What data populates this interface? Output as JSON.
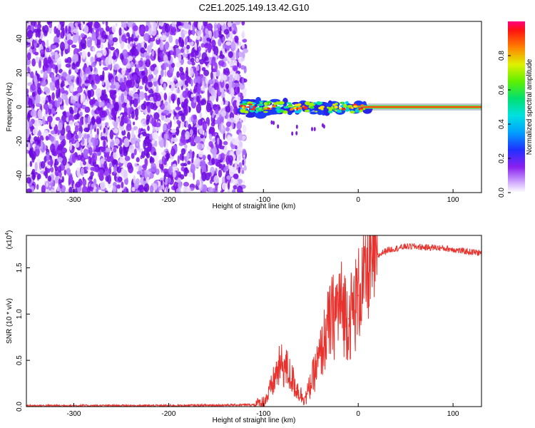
{
  "chart_data": [
    {
      "type": "heatmap",
      "title": "C2E1.2025.149.13.42.G10",
      "xlabel": "Height of straight line (km)",
      "ylabel": "Frequency (Hz)",
      "xlim": [
        -350,
        130
      ],
      "ylim": [
        -50,
        50
      ],
      "x_ticks": [
        -300,
        -200,
        -100,
        0,
        100
      ],
      "y_ticks": [
        -40,
        -20,
        0,
        20,
        40
      ],
      "colorbar": {
        "label": "Normalized spectral amplitude",
        "range": [
          0.0,
          1.0
        ],
        "ticks": [
          0.0,
          0.2,
          0.4,
          0.6,
          0.8
        ]
      },
      "regions": [
        {
          "name": "noise",
          "x_range": [
            -350,
            -125
          ],
          "freq_range": [
            -50,
            50
          ],
          "amplitude": "0.05-0.25 (purple speckle)"
        },
        {
          "name": "multipath",
          "x_range": [
            -125,
            10
          ],
          "freq_range": [
            -15,
            10
          ],
          "amplitude": "0.3-0.9 (green/yellow/red blobs)"
        },
        {
          "name": "direct_signal",
          "x_range": [
            10,
            130
          ],
          "freq_range": [
            -1,
            1
          ],
          "amplitude": "~1.0 (red line)"
        }
      ]
    },
    {
      "type": "line",
      "title": "",
      "xlabel": "Height of straight line (km)",
      "ylabel": "SNR (10 * v/v)",
      "y_multiplier": "(x10^4)",
      "y_multiplier_base": "(x10",
      "y_multiplier_exp": "4",
      "y_multiplier_close": ")",
      "xlim": [
        -350,
        130
      ],
      "ylim": [
        0,
        1.85
      ],
      "x_ticks": [
        -300,
        -200,
        -100,
        0,
        100
      ],
      "y_ticks": [
        0.0,
        0.5,
        1.0,
        1.5
      ],
      "y_tick_labels": [
        "0.0",
        "0.5",
        "1.0",
        "1.5"
      ],
      "series": [
        {
          "name": "SNR",
          "color": "#e8322d",
          "x": [
            -350,
            -300,
            -250,
            -200,
            -150,
            -110,
            -100,
            -95,
            -90,
            -85,
            -80,
            -75,
            -70,
            -65,
            -60,
            -55,
            -50,
            -45,
            -40,
            -35,
            -30,
            -25,
            -20,
            -15,
            -10,
            -5,
            0,
            5,
            10,
            15,
            20,
            25,
            30,
            35,
            40,
            45,
            50,
            60,
            70,
            80,
            90,
            100,
            110,
            120,
            130
          ],
          "values": [
            0.01,
            0.01,
            0.01,
            0.01,
            0.015,
            0.02,
            0.05,
            0.12,
            0.25,
            0.4,
            0.45,
            0.4,
            0.3,
            0.2,
            0.12,
            0.1,
            0.25,
            0.4,
            0.55,
            0.75,
            0.9,
            1.0,
            1.1,
            1.05,
            0.95,
            1.05,
            1.2,
            1.35,
            1.45,
            1.55,
            1.62,
            1.66,
            1.69,
            1.7,
            1.71,
            1.72,
            1.73,
            1.73,
            1.72,
            1.72,
            1.71,
            1.7,
            1.68,
            1.67,
            1.66
          ]
        }
      ]
    }
  ]
}
